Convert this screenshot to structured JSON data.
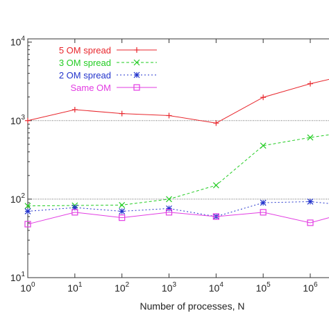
{
  "chart_data": {
    "type": "line",
    "xlabel": "Number of processes, N",
    "ylabel": "",
    "x_scale": "log",
    "y_scale": "log",
    "xlim": [
      1,
      2500000
    ],
    "ylim": [
      10,
      11000
    ],
    "x_ticks": [
      {
        "value": 1,
        "base": "10",
        "exp": "0"
      },
      {
        "value": 10,
        "base": "10",
        "exp": "1"
      },
      {
        "value": 100,
        "base": "10",
        "exp": "2"
      },
      {
        "value": 1000,
        "base": "10",
        "exp": "3"
      },
      {
        "value": 10000,
        "base": "10",
        "exp": "4"
      },
      {
        "value": 100000,
        "base": "10",
        "exp": "5"
      },
      {
        "value": 1000000,
        "base": "10",
        "exp": "6"
      }
    ],
    "y_ticks": [
      {
        "value": 10,
        "base": "10",
        "exp": "1"
      },
      {
        "value": 100,
        "base": "10",
        "exp": "2"
      },
      {
        "value": 1000,
        "base": "10",
        "exp": "3"
      },
      {
        "value": 10000,
        "base": "10",
        "exp": "4"
      }
    ],
    "reference_lines": [
      1000,
      100
    ],
    "grid": false,
    "legend_position": "top-left",
    "x": [
      1,
      10,
      100,
      1000,
      10000,
      100000,
      1000000,
      2500000
    ],
    "series": [
      {
        "name": "5 OM spread",
        "color": "#e8262c",
        "marker": "plus",
        "dash": "",
        "values": [
          1000,
          1380,
          1230,
          1160,
          930,
          1980,
          2950,
          3350
        ]
      },
      {
        "name": "3 OM spread",
        "color": "#22cc22",
        "marker": "x",
        "dash": "4,3",
        "values": [
          82,
          83,
          84,
          100,
          150,
          480,
          610,
          660
        ]
      },
      {
        "name": "2 OM spread",
        "color": "#2233cc",
        "marker": "star",
        "dash": "2,3",
        "values": [
          70,
          78,
          70,
          76,
          60,
          90,
          93,
          88
        ]
      },
      {
        "name": "Same OM",
        "color": "#e23be2",
        "marker": "square",
        "dash": "",
        "values": [
          48,
          68,
          58,
          68,
          60,
          68,
          50,
          58
        ]
      }
    ]
  }
}
